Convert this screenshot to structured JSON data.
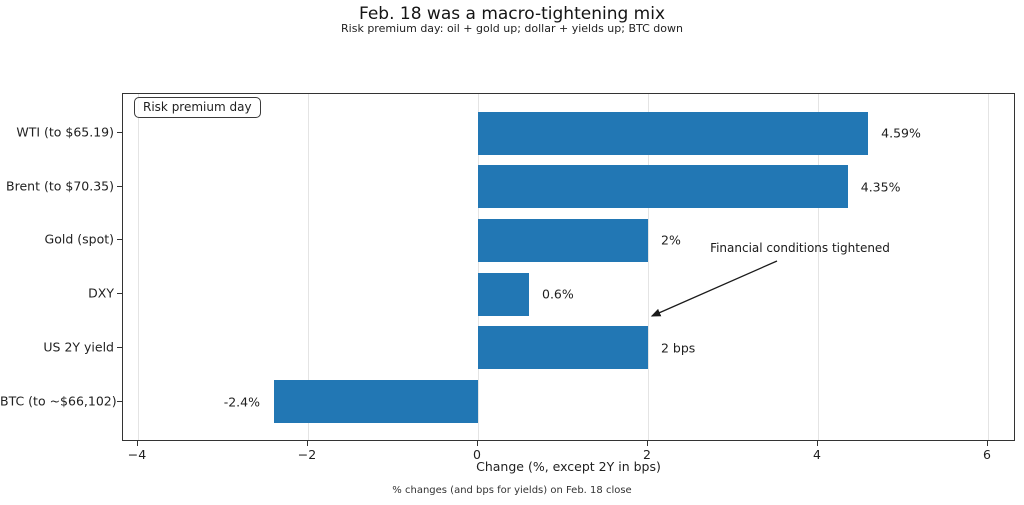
{
  "title": "Feb. 18 was a macro-tightening mix",
  "subtitle": "Risk premium day: oil + gold up; dollar + yields up; BTC down",
  "legend_label": "Risk premium day",
  "annotation": "Financial conditions tightened",
  "footer": "% changes (and bps for yields) on Feb. 18 close",
  "chart_data": {
    "type": "bar",
    "orientation": "horizontal",
    "title": "Feb. 18 was a macro-tightening mix",
    "subtitle": "Risk premium day: oil + gold up; dollar + yields up; BTC down",
    "categories": [
      "WTI (to $65.19)",
      "Brent (to $70.35)",
      "Gold (spot)",
      "DXY",
      "US 2Y yield",
      "BTC (to ~$66,102)"
    ],
    "values": [
      4.59,
      4.35,
      2,
      0.6,
      2,
      -2.4
    ],
    "value_labels": [
      "4.59%",
      "4.35%",
      "2%",
      "0.6%",
      "2 bps",
      "-2.4%"
    ],
    "xlabel": "Change (%, except 2Y in bps)",
    "xticks": [
      -4,
      -2,
      0,
      2,
      4,
      6
    ],
    "xtick_labels": [
      "−4",
      "−2",
      "0",
      "2",
      "4",
      "6"
    ],
    "xlim": [
      -4.18,
      6.33
    ],
    "grid": true,
    "legend_position": "upper left",
    "bar_color": "#2277b4",
    "grid_color": "#e4e4e4",
    "annotation_text": "Financial conditions tightened",
    "annotation_points_to": {
      "category": "US 2Y yield",
      "value": 2
    }
  }
}
